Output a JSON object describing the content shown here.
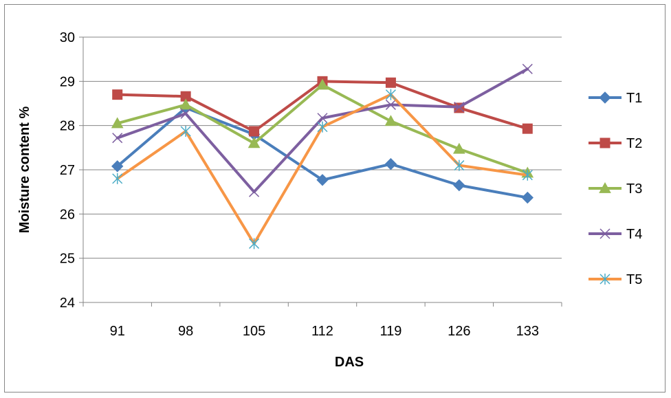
{
  "chart_data": {
    "type": "line",
    "title": "",
    "xlabel": "DAS",
    "ylabel": "Moisture content %",
    "categories": [
      "91",
      "98",
      "105",
      "112",
      "119",
      "126",
      "133"
    ],
    "yticks": [
      "24",
      "25",
      "26",
      "27",
      "28",
      "29",
      "30"
    ],
    "ylim": [
      24,
      30
    ],
    "grid": "horizontal",
    "legend_position": "right",
    "series": [
      {
        "name": "T1",
        "values": [
          27.08,
          28.4,
          27.8,
          26.77,
          27.13,
          26.65,
          26.37
        ],
        "color": "#4a7ebb",
        "marker": "diamond"
      },
      {
        "name": "T2",
        "values": [
          28.7,
          28.66,
          27.87,
          29.0,
          28.97,
          28.4,
          27.93
        ],
        "color": "#be4b48",
        "marker": "square"
      },
      {
        "name": "T3",
        "values": [
          28.05,
          28.47,
          27.6,
          28.92,
          28.1,
          27.47,
          26.93
        ],
        "color": "#98b954",
        "marker": "triangle"
      },
      {
        "name": "T4",
        "values": [
          27.72,
          28.27,
          26.5,
          28.17,
          28.47,
          28.42,
          29.28
        ],
        "color": "#7d5fa0",
        "marker": "x"
      },
      {
        "name": "T5",
        "values": [
          26.8,
          27.87,
          25.33,
          27.97,
          28.7,
          27.1,
          26.88
        ],
        "color": "#f79646",
        "marker": "star",
        "marker_color": "#4bacc6"
      }
    ]
  }
}
